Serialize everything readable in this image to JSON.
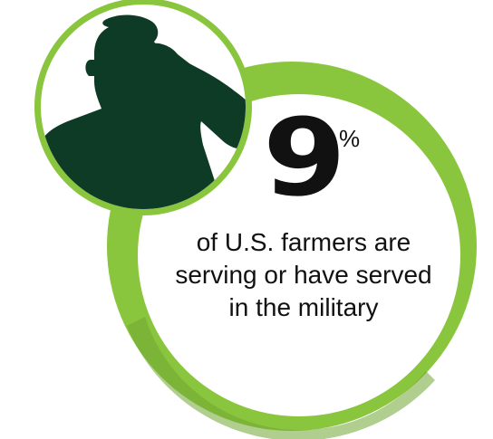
{
  "stat": {
    "value": "9",
    "unit": "%"
  },
  "caption": {
    "line1": "of U.S. farmers are",
    "line2": "serving or have served",
    "line3": "in the military"
  },
  "colors": {
    "ring_green": "#8ac53e",
    "ring_green_dark": "#6fa630",
    "silhouette": "#0e3b26",
    "text": "#111111",
    "background": "#ffffff"
  },
  "icons": {
    "silhouette": "saluting-soldier-icon"
  }
}
